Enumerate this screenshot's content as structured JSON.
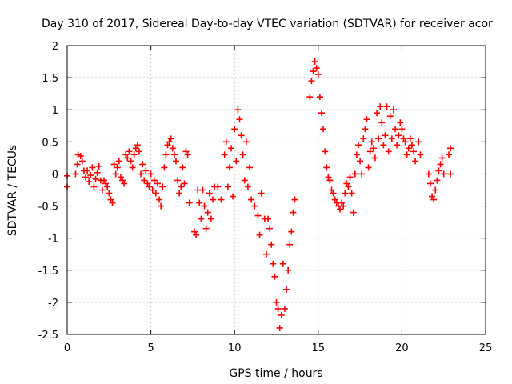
{
  "chart_data": {
    "type": "scatter",
    "title": "Day 310 of 2017, Sidereal Day-to-day VTEC variation (SDTVAR) for receiver acor",
    "xlabel": "GPS time / hours",
    "ylabel": "SDTVAR / TECUs",
    "xlim": [
      0,
      25
    ],
    "ylim": [
      -2.5,
      2
    ],
    "xticks": [
      0,
      5,
      10,
      15,
      20,
      25
    ],
    "xtick_labels": [
      "0",
      "5",
      "10",
      "15",
      "20",
      "25"
    ],
    "yticks": [
      -2.5,
      -2,
      -1.5,
      -1,
      -0.5,
      0,
      0.5,
      1,
      1.5,
      2
    ],
    "ytick_labels": [
      "-2.5",
      "-2",
      "-1.5",
      "-1",
      "-0.5",
      "0",
      "0.5",
      "1",
      "1.5",
      "2"
    ],
    "grid": true,
    "marker": "+",
    "series": [
      {
        "name": "SDTVAR",
        "color": "#ff0000",
        "points": [
          [
            0.0,
            -0.03
          ],
          [
            0.0,
            -0.2
          ],
          [
            0.5,
            0.0
          ],
          [
            0.6,
            0.15
          ],
          [
            0.65,
            0.3
          ],
          [
            0.8,
            0.28
          ],
          [
            0.9,
            0.2
          ],
          [
            1.0,
            0.05
          ],
          [
            1.1,
            -0.05
          ],
          [
            1.2,
            0.05
          ],
          [
            1.3,
            -0.12
          ],
          [
            1.4,
            -0.02
          ],
          [
            1.5,
            0.1
          ],
          [
            1.6,
            -0.2
          ],
          [
            1.7,
            -0.08
          ],
          [
            1.8,
            0.02
          ],
          [
            1.9,
            0.12
          ],
          [
            2.0,
            -0.1
          ],
          [
            2.1,
            -0.25
          ],
          [
            2.2,
            -0.1
          ],
          [
            2.3,
            -0.15
          ],
          [
            2.4,
            -0.2
          ],
          [
            2.5,
            -0.3
          ],
          [
            2.6,
            -0.4
          ],
          [
            2.7,
            -0.45
          ],
          [
            2.8,
            0.15
          ],
          [
            2.9,
            0.0
          ],
          [
            3.0,
            0.1
          ],
          [
            3.1,
            0.2
          ],
          [
            3.2,
            -0.05
          ],
          [
            3.3,
            -0.1
          ],
          [
            3.4,
            -0.15
          ],
          [
            3.5,
            0.3
          ],
          [
            3.6,
            0.25
          ],
          [
            3.7,
            0.35
          ],
          [
            3.8,
            0.2
          ],
          [
            3.9,
            0.1
          ],
          [
            4.0,
            0.3
          ],
          [
            4.1,
            0.4
          ],
          [
            4.2,
            0.45
          ],
          [
            4.3,
            0.35
          ],
          [
            4.4,
            0.0
          ],
          [
            4.5,
            0.15
          ],
          [
            4.6,
            -0.1
          ],
          [
            4.7,
            0.05
          ],
          [
            4.8,
            -0.15
          ],
          [
            4.9,
            -0.2
          ],
          [
            5.0,
            0.0
          ],
          [
            5.1,
            -0.25
          ],
          [
            5.2,
            -0.1
          ],
          [
            5.3,
            -0.3
          ],
          [
            5.4,
            -0.15
          ],
          [
            5.5,
            -0.4
          ],
          [
            5.6,
            -0.5
          ],
          [
            5.7,
            -0.2
          ],
          [
            5.8,
            0.1
          ],
          [
            5.9,
            0.3
          ],
          [
            6.0,
            0.45
          ],
          [
            6.1,
            0.5
          ],
          [
            6.2,
            0.55
          ],
          [
            6.3,
            0.4
          ],
          [
            6.4,
            0.3
          ],
          [
            6.5,
            0.2
          ],
          [
            6.6,
            -0.1
          ],
          [
            6.7,
            -0.3
          ],
          [
            6.8,
            -0.2
          ],
          [
            6.9,
            0.1
          ],
          [
            7.0,
            -0.15
          ],
          [
            7.1,
            0.35
          ],
          [
            7.2,
            0.3
          ],
          [
            7.3,
            -0.45
          ],
          [
            7.6,
            -0.9
          ],
          [
            7.7,
            -0.95
          ],
          [
            7.8,
            -0.25
          ],
          [
            7.9,
            -0.45
          ],
          [
            8.0,
            -0.7
          ],
          [
            8.1,
            -0.25
          ],
          [
            8.2,
            -0.5
          ],
          [
            8.3,
            -0.85
          ],
          [
            8.4,
            -0.6
          ],
          [
            8.5,
            -0.3
          ],
          [
            8.6,
            -0.7
          ],
          [
            8.7,
            -0.4
          ],
          [
            8.8,
            -0.2
          ],
          [
            9.0,
            -0.2
          ],
          [
            9.2,
            -0.4
          ],
          [
            9.4,
            0.3
          ],
          [
            9.5,
            0.5
          ],
          [
            9.6,
            -0.2
          ],
          [
            9.7,
            0.1
          ],
          [
            9.8,
            0.4
          ],
          [
            9.9,
            -0.35
          ],
          [
            10.0,
            0.7
          ],
          [
            10.1,
            0.2
          ],
          [
            10.2,
            1.0
          ],
          [
            10.3,
            0.85
          ],
          [
            10.4,
            0.6
          ],
          [
            10.5,
            0.3
          ],
          [
            10.6,
            -0.1
          ],
          [
            10.7,
            0.5
          ],
          [
            10.8,
            -0.2
          ],
          [
            10.9,
            0.1
          ],
          [
            11.0,
            -0.4
          ],
          [
            11.2,
            -0.5
          ],
          [
            11.4,
            -0.65
          ],
          [
            11.5,
            -0.95
          ],
          [
            11.6,
            -0.3
          ],
          [
            11.8,
            -0.7
          ],
          [
            11.9,
            -1.25
          ],
          [
            12.0,
            -0.7
          ],
          [
            12.1,
            -0.85
          ],
          [
            12.2,
            -1.1
          ],
          [
            12.3,
            -1.4
          ],
          [
            12.4,
            -1.6
          ],
          [
            12.5,
            -2.0
          ],
          [
            12.6,
            -2.1
          ],
          [
            12.7,
            -2.4
          ],
          [
            12.8,
            -2.2
          ],
          [
            12.9,
            -1.4
          ],
          [
            13.0,
            -2.1
          ],
          [
            13.1,
            -1.8
          ],
          [
            13.2,
            -1.5
          ],
          [
            13.3,
            -1.1
          ],
          [
            13.4,
            -0.9
          ],
          [
            13.5,
            -0.6
          ],
          [
            13.6,
            -0.4
          ],
          [
            14.5,
            1.2
          ],
          [
            14.6,
            1.45
          ],
          [
            14.7,
            1.6
          ],
          [
            14.8,
            1.75
          ],
          [
            14.9,
            1.65
          ],
          [
            15.0,
            1.55
          ],
          [
            15.1,
            1.2
          ],
          [
            15.2,
            0.95
          ],
          [
            15.3,
            0.7
          ],
          [
            15.4,
            0.35
          ],
          [
            15.5,
            0.1
          ],
          [
            15.6,
            -0.05
          ],
          [
            15.7,
            -0.1
          ],
          [
            15.8,
            -0.25
          ],
          [
            15.9,
            -0.3
          ],
          [
            16.0,
            -0.4
          ],
          [
            16.1,
            -0.45
          ],
          [
            16.2,
            -0.5
          ],
          [
            16.3,
            -0.55
          ],
          [
            16.4,
            -0.45
          ],
          [
            16.5,
            -0.5
          ],
          [
            16.6,
            -0.3
          ],
          [
            16.7,
            -0.15
          ],
          [
            16.8,
            -0.2
          ],
          [
            16.9,
            -0.05
          ],
          [
            17.0,
            -0.3
          ],
          [
            17.1,
            -0.6
          ],
          [
            17.2,
            0.0
          ],
          [
            17.3,
            0.3
          ],
          [
            17.4,
            0.45
          ],
          [
            17.5,
            0.2
          ],
          [
            17.6,
            0.0
          ],
          [
            17.7,
            0.55
          ],
          [
            17.8,
            0.7
          ],
          [
            17.9,
            0.85
          ],
          [
            18.0,
            0.1
          ],
          [
            18.1,
            0.35
          ],
          [
            18.2,
            0.5
          ],
          [
            18.3,
            0.4
          ],
          [
            18.4,
            0.25
          ],
          [
            18.5,
            0.95
          ],
          [
            18.6,
            0.55
          ],
          [
            18.7,
            1.05
          ],
          [
            18.8,
            0.8
          ],
          [
            18.9,
            0.45
          ],
          [
            19.0,
            0.6
          ],
          [
            19.1,
            1.05
          ],
          [
            19.2,
            0.35
          ],
          [
            19.3,
            0.9
          ],
          [
            19.4,
            0.55
          ],
          [
            19.5,
            1.0
          ],
          [
            19.6,
            0.7
          ],
          [
            19.7,
            0.45
          ],
          [
            19.8,
            0.6
          ],
          [
            19.9,
            0.8
          ],
          [
            20.0,
            0.7
          ],
          [
            20.1,
            0.55
          ],
          [
            20.2,
            0.5
          ],
          [
            20.3,
            0.3
          ],
          [
            20.4,
            0.4
          ],
          [
            20.5,
            0.55
          ],
          [
            20.6,
            0.45
          ],
          [
            20.7,
            0.35
          ],
          [
            20.8,
            0.2
          ],
          [
            21.0,
            0.5
          ],
          [
            21.1,
            0.3
          ],
          [
            21.6,
            0.0
          ],
          [
            21.7,
            -0.15
          ],
          [
            21.8,
            -0.35
          ],
          [
            21.9,
            -0.4
          ],
          [
            22.0,
            -0.25
          ],
          [
            22.1,
            -0.1
          ],
          [
            22.2,
            0.05
          ],
          [
            22.3,
            0.15
          ],
          [
            22.4,
            0.25
          ],
          [
            22.5,
            0.0
          ],
          [
            22.8,
            0.3
          ],
          [
            22.9,
            0.4
          ],
          [
            22.9,
            0.0
          ]
        ]
      }
    ]
  }
}
